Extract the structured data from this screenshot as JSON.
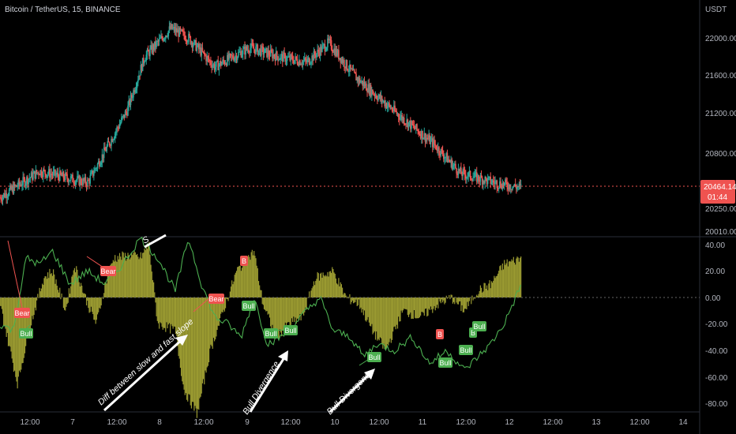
{
  "header": {
    "symbol": "Bitcoin / TetherUS, 15, BINANCE",
    "currency": "USDT"
  },
  "price_panel": {
    "y_ticks": [
      "22000.00",
      "21600.00",
      "21200.00",
      "20800.00",
      "20250.00",
      "20010.00"
    ],
    "last_price": "20464.14",
    "countdown": "01:44"
  },
  "osc_panel": {
    "y_ticks": [
      "40.00",
      "20.00",
      "0.00",
      "-20.00",
      "-40.00",
      "-60.00",
      "-80.00"
    ]
  },
  "x_ticks": [
    "12:00",
    "7",
    "12:00",
    "8",
    "12:00",
    "9",
    "12:00",
    "10",
    "12:00",
    "11",
    "12:00",
    "12",
    "12:00",
    "13",
    "12:00",
    "14"
  ],
  "annotations": {
    "arrow1": "Diff between slow and fast slope",
    "arrow2": "Bull Divergence",
    "arrow3": "Bull Divergence",
    "top_partial": "S"
  },
  "signals": [
    {
      "text": "Bear",
      "kind": "bear"
    },
    {
      "text": "Bear",
      "kind": "bear"
    },
    {
      "text": "Bear",
      "kind": "bear"
    },
    {
      "text": "B",
      "kind": "bear"
    },
    {
      "text": "B",
      "kind": "bear"
    },
    {
      "text": "Bull",
      "kind": "bull"
    },
    {
      "text": "Bull",
      "kind": "bull"
    },
    {
      "text": "Bull",
      "kind": "bull"
    },
    {
      "text": "Bull",
      "kind": "bull"
    },
    {
      "text": "Bull",
      "kind": "bull"
    },
    {
      "text": "Bull",
      "kind": "bull"
    },
    {
      "text": "Bull",
      "kind": "bull"
    },
    {
      "text": "B",
      "kind": "bull"
    },
    {
      "text": "Bull",
      "kind": "bull"
    }
  ],
  "colors": {
    "up": "#26a69a",
    "down": "#ef5350",
    "hist": "#b5b53a",
    "line": "#4caf50",
    "bull": "#4caf50",
    "bear": "#ef5350"
  },
  "chart_data": [
    {
      "type": "candlestick",
      "title": "Bitcoin / TetherUS, 15, BINANCE",
      "ylabel": "USDT",
      "ylim": [
        19950,
        22500
      ],
      "x_ticks": [
        "12:00",
        "7",
        "12:00",
        "8",
        "12:00",
        "9",
        "12:00",
        "10",
        "12:00",
        "11",
        "12:00",
        "12",
        "12:00",
        "13",
        "12:00",
        "14"
      ],
      "key_points": [
        {
          "t": 0,
          "close": 20350
        },
        {
          "t": 0.45,
          "close": 20620
        },
        {
          "t": 1.0,
          "close": 20500
        },
        {
          "t": 1.45,
          "close": 21250
        },
        {
          "t": 1.65,
          "close": 21800
        },
        {
          "t": 1.95,
          "close": 22100
        },
        {
          "t": 2.15,
          "close": 22000
        },
        {
          "t": 2.45,
          "close": 21700
        },
        {
          "t": 2.85,
          "close": 21900
        },
        {
          "t": 3.2,
          "close": 21800
        },
        {
          "t": 3.5,
          "close": 21750
        },
        {
          "t": 3.75,
          "close": 21950
        },
        {
          "t": 4.05,
          "close": 21600
        },
        {
          "t": 4.55,
          "close": 21200
        },
        {
          "t": 4.95,
          "close": 20900
        },
        {
          "t": 5.25,
          "close": 20600
        },
        {
          "t": 5.65,
          "close": 20500
        },
        {
          "t": 5.95,
          "close": 20450
        }
      ],
      "last_price": 20464.14
    },
    {
      "type": "histogram+line",
      "ylim": [
        -88,
        45
      ],
      "series": [
        {
          "values_x": [
            0,
            0.1,
            0.2,
            0.35,
            0.5,
            0.6,
            0.75,
            0.85,
            1.0,
            1.1,
            1.2,
            1.3,
            1.5,
            1.6,
            1.7,
            1.8,
            2.0,
            2.1,
            2.25,
            2.4,
            2.55,
            2.7,
            2.9,
            3.0,
            3.15,
            3.3,
            3.45,
            3.6,
            3.8,
            3.95,
            4.1,
            4.25,
            4.4,
            4.6,
            4.8,
            5.0,
            5.15,
            5.3,
            5.45,
            5.6,
            5.75,
            5.95
          ],
          "values_y": [
            -5,
            -35,
            -65,
            -20,
            15,
            20,
            -10,
            25,
            -5,
            -20,
            10,
            30,
            32,
            30,
            40,
            -20,
            -25,
            -70,
            -88,
            -40,
            -10,
            20,
            35,
            -5,
            -30,
            -20,
            -15,
            15,
            20,
            0,
            -5,
            -25,
            -40,
            -10,
            -15,
            -5,
            0,
            -10,
            5,
            10,
            25,
            30
          ]
        },
        {
          "values_x": [
            0,
            0.15,
            0.3,
            0.45,
            0.6,
            0.8,
            1.0,
            1.2,
            1.4,
            1.6,
            1.8,
            2.0,
            2.15,
            2.3,
            2.45,
            2.6,
            2.75,
            2.9,
            3.05,
            3.2,
            3.35,
            3.5,
            3.65,
            3.8,
            4.0,
            4.15,
            4.3,
            4.5,
            4.7,
            4.9,
            5.1,
            5.3,
            5.45,
            5.6,
            5.75,
            5.95
          ],
          "values_y": [
            -20,
            -25,
            30,
            25,
            35,
            10,
            20,
            10,
            25,
            45,
            30,
            5,
            45,
            10,
            -15,
            -20,
            -30,
            0,
            -35,
            -30,
            -20,
            -10,
            0,
            -25,
            -30,
            -45,
            -35,
            -40,
            -30,
            -50,
            -40,
            -55,
            -45,
            -35,
            -20,
            10
          ]
        }
      ]
    }
  ]
}
